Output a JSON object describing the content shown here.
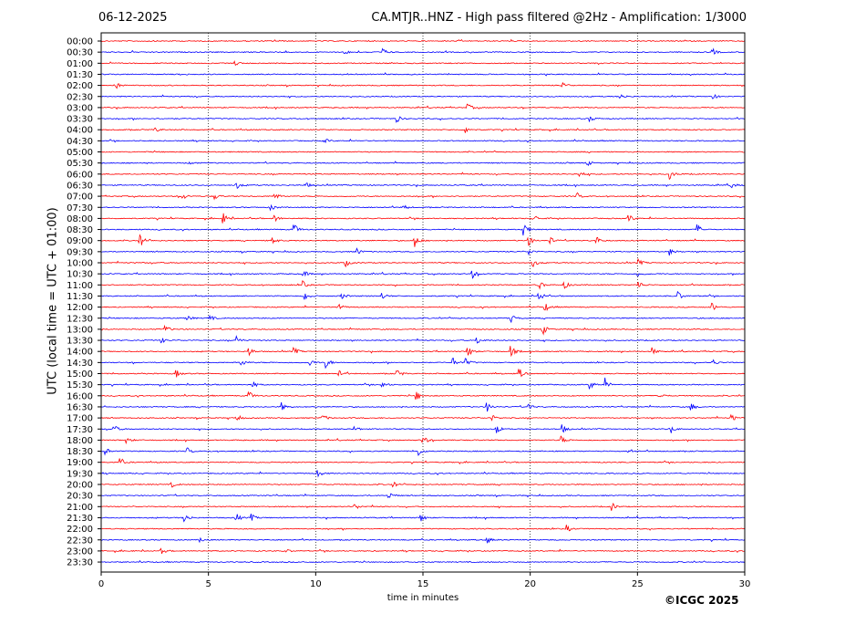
{
  "header": {
    "date": "06-12-2025",
    "title": "CA.MTJR..HNZ - High pass filtered @2Hz - Amplification: 1/3000"
  },
  "footer": {
    "copyright": "©ICGC 2025"
  },
  "chart_data": {
    "type": "line",
    "title": "CA.MTJR..HNZ - High pass filtered @2Hz - Amplification: 1/3000",
    "xlabel": "time in minutes",
    "ylabel": "UTC (local time = UTC + 01:00)",
    "xlim": [
      0,
      30
    ],
    "x_ticks": [
      0,
      5,
      10,
      15,
      20,
      25,
      30
    ],
    "grid": "vertical dotted lines at 5-minute intervals",
    "trace_colors": [
      "#ff0000",
      "#0000ff"
    ],
    "row_labels": [
      "00:00",
      "00:30",
      "01:00",
      "01:30",
      "02:00",
      "02:30",
      "03:00",
      "03:30",
      "04:00",
      "04:30",
      "05:00",
      "05:30",
      "06:00",
      "06:30",
      "07:00",
      "07:30",
      "08:00",
      "08:30",
      "09:00",
      "09:30",
      "10:00",
      "10:30",
      "11:00",
      "11:30",
      "12:00",
      "12:30",
      "13:00",
      "13:30",
      "14:00",
      "14:30",
      "15:00",
      "15:30",
      "16:00",
      "16:30",
      "17:00",
      "17:30",
      "18:00",
      "18:30",
      "19:00",
      "19:30",
      "20:00",
      "20:30",
      "21:00",
      "21:30",
      "22:00",
      "22:30",
      "23:00",
      "23:30"
    ],
    "rows": [
      {
        "label": "00:00",
        "color": "#ff0000",
        "bursts": []
      },
      {
        "label": "00:30",
        "color": "#0000ff",
        "bursts": [
          [
            11.3,
            0.4
          ],
          [
            13.1,
            0.6
          ],
          [
            28.5,
            0.5
          ]
        ]
      },
      {
        "label": "01:00",
        "color": "#ff0000",
        "bursts": [
          [
            6.2,
            0.4
          ]
        ]
      },
      {
        "label": "01:30",
        "color": "#0000ff",
        "bursts": [
          [
            3.7,
            0.4
          ]
        ]
      },
      {
        "label": "02:00",
        "color": "#ff0000",
        "bursts": [
          [
            0.7,
            0.4
          ],
          [
            21.5,
            0.4
          ]
        ]
      },
      {
        "label": "02:30",
        "color": "#0000ff",
        "bursts": [
          [
            24.2,
            0.5
          ],
          [
            28.5,
            0.4
          ]
        ]
      },
      {
        "label": "03:00",
        "color": "#ff0000",
        "bursts": [
          [
            17.1,
            0.5
          ]
        ]
      },
      {
        "label": "03:30",
        "color": "#0000ff",
        "bursts": [
          [
            13.8,
            0.5
          ],
          [
            22.8,
            0.4
          ]
        ]
      },
      {
        "label": "04:00",
        "color": "#ff0000",
        "bursts": [
          [
            2.5,
            0.4
          ],
          [
            17.0,
            0.5
          ]
        ]
      },
      {
        "label": "04:30",
        "color": "#0000ff",
        "bursts": [
          [
            10.4,
            0.4
          ]
        ]
      },
      {
        "label": "05:00",
        "color": "#ff0000",
        "bursts": []
      },
      {
        "label": "05:30",
        "color": "#0000ff",
        "bursts": [
          [
            4.1,
            0.3
          ],
          [
            22.7,
            0.3
          ]
        ]
      },
      {
        "label": "06:00",
        "color": "#ff0000",
        "bursts": [
          [
            26.5,
            0.7
          ],
          [
            22.3,
            0.4
          ]
        ]
      },
      {
        "label": "06:30",
        "color": "#0000ff",
        "bursts": [
          [
            6.3,
            0.5
          ],
          [
            9.5,
            0.5
          ],
          [
            29.4,
            0.4
          ]
        ]
      },
      {
        "label": "07:00",
        "color": "#ff0000",
        "bursts": [
          [
            3.8,
            0.5
          ],
          [
            5.3,
            0.4
          ],
          [
            8.1,
            0.5
          ],
          [
            22.2,
            0.4
          ]
        ]
      },
      {
        "label": "07:30",
        "color": "#0000ff",
        "bursts": [
          [
            7.9,
            0.5
          ],
          [
            14.1,
            0.4
          ]
        ]
      },
      {
        "label": "08:00",
        "color": "#ff0000",
        "bursts": [
          [
            5.7,
            0.7
          ],
          [
            8.1,
            0.4
          ],
          [
            20.2,
            0.5
          ],
          [
            24.6,
            0.6
          ]
        ]
      },
      {
        "label": "08:30",
        "color": "#0000ff",
        "bursts": [
          [
            9.0,
            0.8
          ],
          [
            19.7,
            0.9
          ],
          [
            27.8,
            0.7
          ]
        ]
      },
      {
        "label": "09:00",
        "color": "#ff0000",
        "bursts": [
          [
            1.8,
            1.0
          ],
          [
            8.0,
            0.6
          ],
          [
            14.6,
            1.0
          ],
          [
            19.9,
            0.8
          ],
          [
            20.9,
            0.6
          ],
          [
            23.1,
            0.5
          ]
        ]
      },
      {
        "label": "09:30",
        "color": "#0000ff",
        "bursts": [
          [
            11.9,
            0.6
          ],
          [
            19.9,
            0.6
          ],
          [
            26.5,
            0.5
          ]
        ]
      },
      {
        "label": "10:00",
        "color": "#ff0000",
        "bursts": [
          [
            11.4,
            0.5
          ],
          [
            20.1,
            0.7
          ],
          [
            25.0,
            0.6
          ]
        ]
      },
      {
        "label": "10:30",
        "color": "#0000ff",
        "bursts": [
          [
            9.4,
            0.6
          ],
          [
            17.3,
            0.6
          ],
          [
            25.0,
            0.5
          ]
        ]
      },
      {
        "label": "11:00",
        "color": "#ff0000",
        "bursts": [
          [
            9.4,
            0.5
          ],
          [
            20.4,
            0.6
          ],
          [
            21.6,
            0.5
          ],
          [
            25.0,
            0.8
          ]
        ]
      },
      {
        "label": "11:30",
        "color": "#0000ff",
        "bursts": [
          [
            9.5,
            0.6
          ],
          [
            11.2,
            0.5
          ],
          [
            13.1,
            0.5
          ],
          [
            20.4,
            0.7
          ],
          [
            26.9,
            0.6
          ]
        ]
      },
      {
        "label": "12:00",
        "color": "#ff0000",
        "bursts": [
          [
            11.0,
            0.7
          ],
          [
            20.7,
            0.6
          ],
          [
            28.5,
            0.6
          ]
        ]
      },
      {
        "label": "12:30",
        "color": "#0000ff",
        "bursts": [
          [
            4.0,
            0.5
          ],
          [
            5.0,
            0.6
          ],
          [
            19.1,
            0.6
          ]
        ]
      },
      {
        "label": "13:00",
        "color": "#ff0000",
        "bursts": [
          [
            3.0,
            0.5
          ],
          [
            20.6,
            0.7
          ]
        ]
      },
      {
        "label": "13:30",
        "color": "#0000ff",
        "bursts": [
          [
            2.8,
            0.4
          ],
          [
            6.3,
            0.6
          ],
          [
            17.5,
            0.6
          ]
        ]
      },
      {
        "label": "14:00",
        "color": "#ff0000",
        "bursts": [
          [
            6.9,
            0.6
          ],
          [
            9.0,
            0.5
          ],
          [
            17.1,
            0.9
          ],
          [
            19.1,
            0.8
          ],
          [
            25.7,
            0.5
          ]
        ]
      },
      {
        "label": "14:30",
        "color": "#0000ff",
        "bursts": [
          [
            6.5,
            0.6
          ],
          [
            9.7,
            0.6
          ],
          [
            10.5,
            0.7
          ],
          [
            16.4,
            0.6
          ],
          [
            17.0,
            0.5
          ],
          [
            28.5,
            0.5
          ]
        ]
      },
      {
        "label": "15:00",
        "color": "#ff0000",
        "bursts": [
          [
            3.5,
            0.5
          ],
          [
            11.1,
            0.6
          ],
          [
            13.8,
            0.6
          ],
          [
            19.5,
            0.7
          ]
        ]
      },
      {
        "label": "15:30",
        "color": "#0000ff",
        "bursts": [
          [
            7.0,
            0.7
          ],
          [
            13.1,
            0.5
          ],
          [
            22.8,
            0.6
          ],
          [
            23.5,
            0.8
          ]
        ]
      },
      {
        "label": "16:00",
        "color": "#ff0000",
        "bursts": [
          [
            6.9,
            0.6
          ],
          [
            14.7,
            0.7
          ],
          [
            26.0,
            0.5
          ]
        ]
      },
      {
        "label": "16:30",
        "color": "#0000ff",
        "bursts": [
          [
            8.4,
            0.6
          ],
          [
            18.0,
            0.6
          ],
          [
            19.9,
            0.5
          ],
          [
            27.5,
            0.6
          ]
        ]
      },
      {
        "label": "17:00",
        "color": "#ff0000",
        "bursts": [
          [
            6.3,
            0.4
          ],
          [
            10.3,
            0.6
          ],
          [
            18.2,
            0.5
          ],
          [
            29.4,
            0.5
          ]
        ]
      },
      {
        "label": "17:30",
        "color": "#0000ff",
        "bursts": [
          [
            0.6,
            0.6
          ],
          [
            11.8,
            0.5
          ],
          [
            18.4,
            0.7
          ],
          [
            21.5,
            0.6
          ],
          [
            26.5,
            0.6
          ]
        ]
      },
      {
        "label": "18:00",
        "color": "#ff0000",
        "bursts": [
          [
            1.2,
            0.4
          ],
          [
            15.0,
            0.7
          ],
          [
            21.4,
            0.7
          ]
        ]
      },
      {
        "label": "18:30",
        "color": "#0000ff",
        "bursts": [
          [
            0.2,
            0.5
          ],
          [
            4.0,
            0.5
          ],
          [
            14.8,
            0.6
          ],
          [
            24.6,
            0.5
          ]
        ]
      },
      {
        "label": "19:00",
        "color": "#ff0000",
        "bursts": [
          [
            0.9,
            0.5
          ]
        ]
      },
      {
        "label": "19:30",
        "color": "#0000ff",
        "bursts": [
          [
            10.1,
            0.5
          ]
        ]
      },
      {
        "label": "20:00",
        "color": "#ff0000",
        "bursts": [
          [
            3.3,
            0.4
          ],
          [
            13.6,
            0.4
          ]
        ]
      },
      {
        "label": "20:30",
        "color": "#0000ff",
        "bursts": [
          [
            13.4,
            0.6
          ]
        ]
      },
      {
        "label": "21:00",
        "color": "#ff0000",
        "bursts": [
          [
            11.8,
            0.5
          ],
          [
            23.8,
            0.6
          ]
        ]
      },
      {
        "label": "21:30",
        "color": "#0000ff",
        "bursts": [
          [
            3.9,
            0.7
          ],
          [
            6.3,
            0.6
          ],
          [
            7.0,
            0.5
          ],
          [
            14.9,
            0.6
          ]
        ]
      },
      {
        "label": "22:00",
        "color": "#ff0000",
        "bursts": [
          [
            21.7,
            0.5
          ]
        ]
      },
      {
        "label": "22:30",
        "color": "#0000ff",
        "bursts": [
          [
            4.6,
            0.4
          ],
          [
            18.0,
            0.5
          ]
        ]
      },
      {
        "label": "23:00",
        "color": "#ff0000",
        "bursts": [
          [
            2.8,
            0.4
          ],
          [
            8.6,
            0.3
          ]
        ]
      },
      {
        "label": "23:30",
        "color": "#0000ff",
        "bursts": []
      }
    ]
  }
}
